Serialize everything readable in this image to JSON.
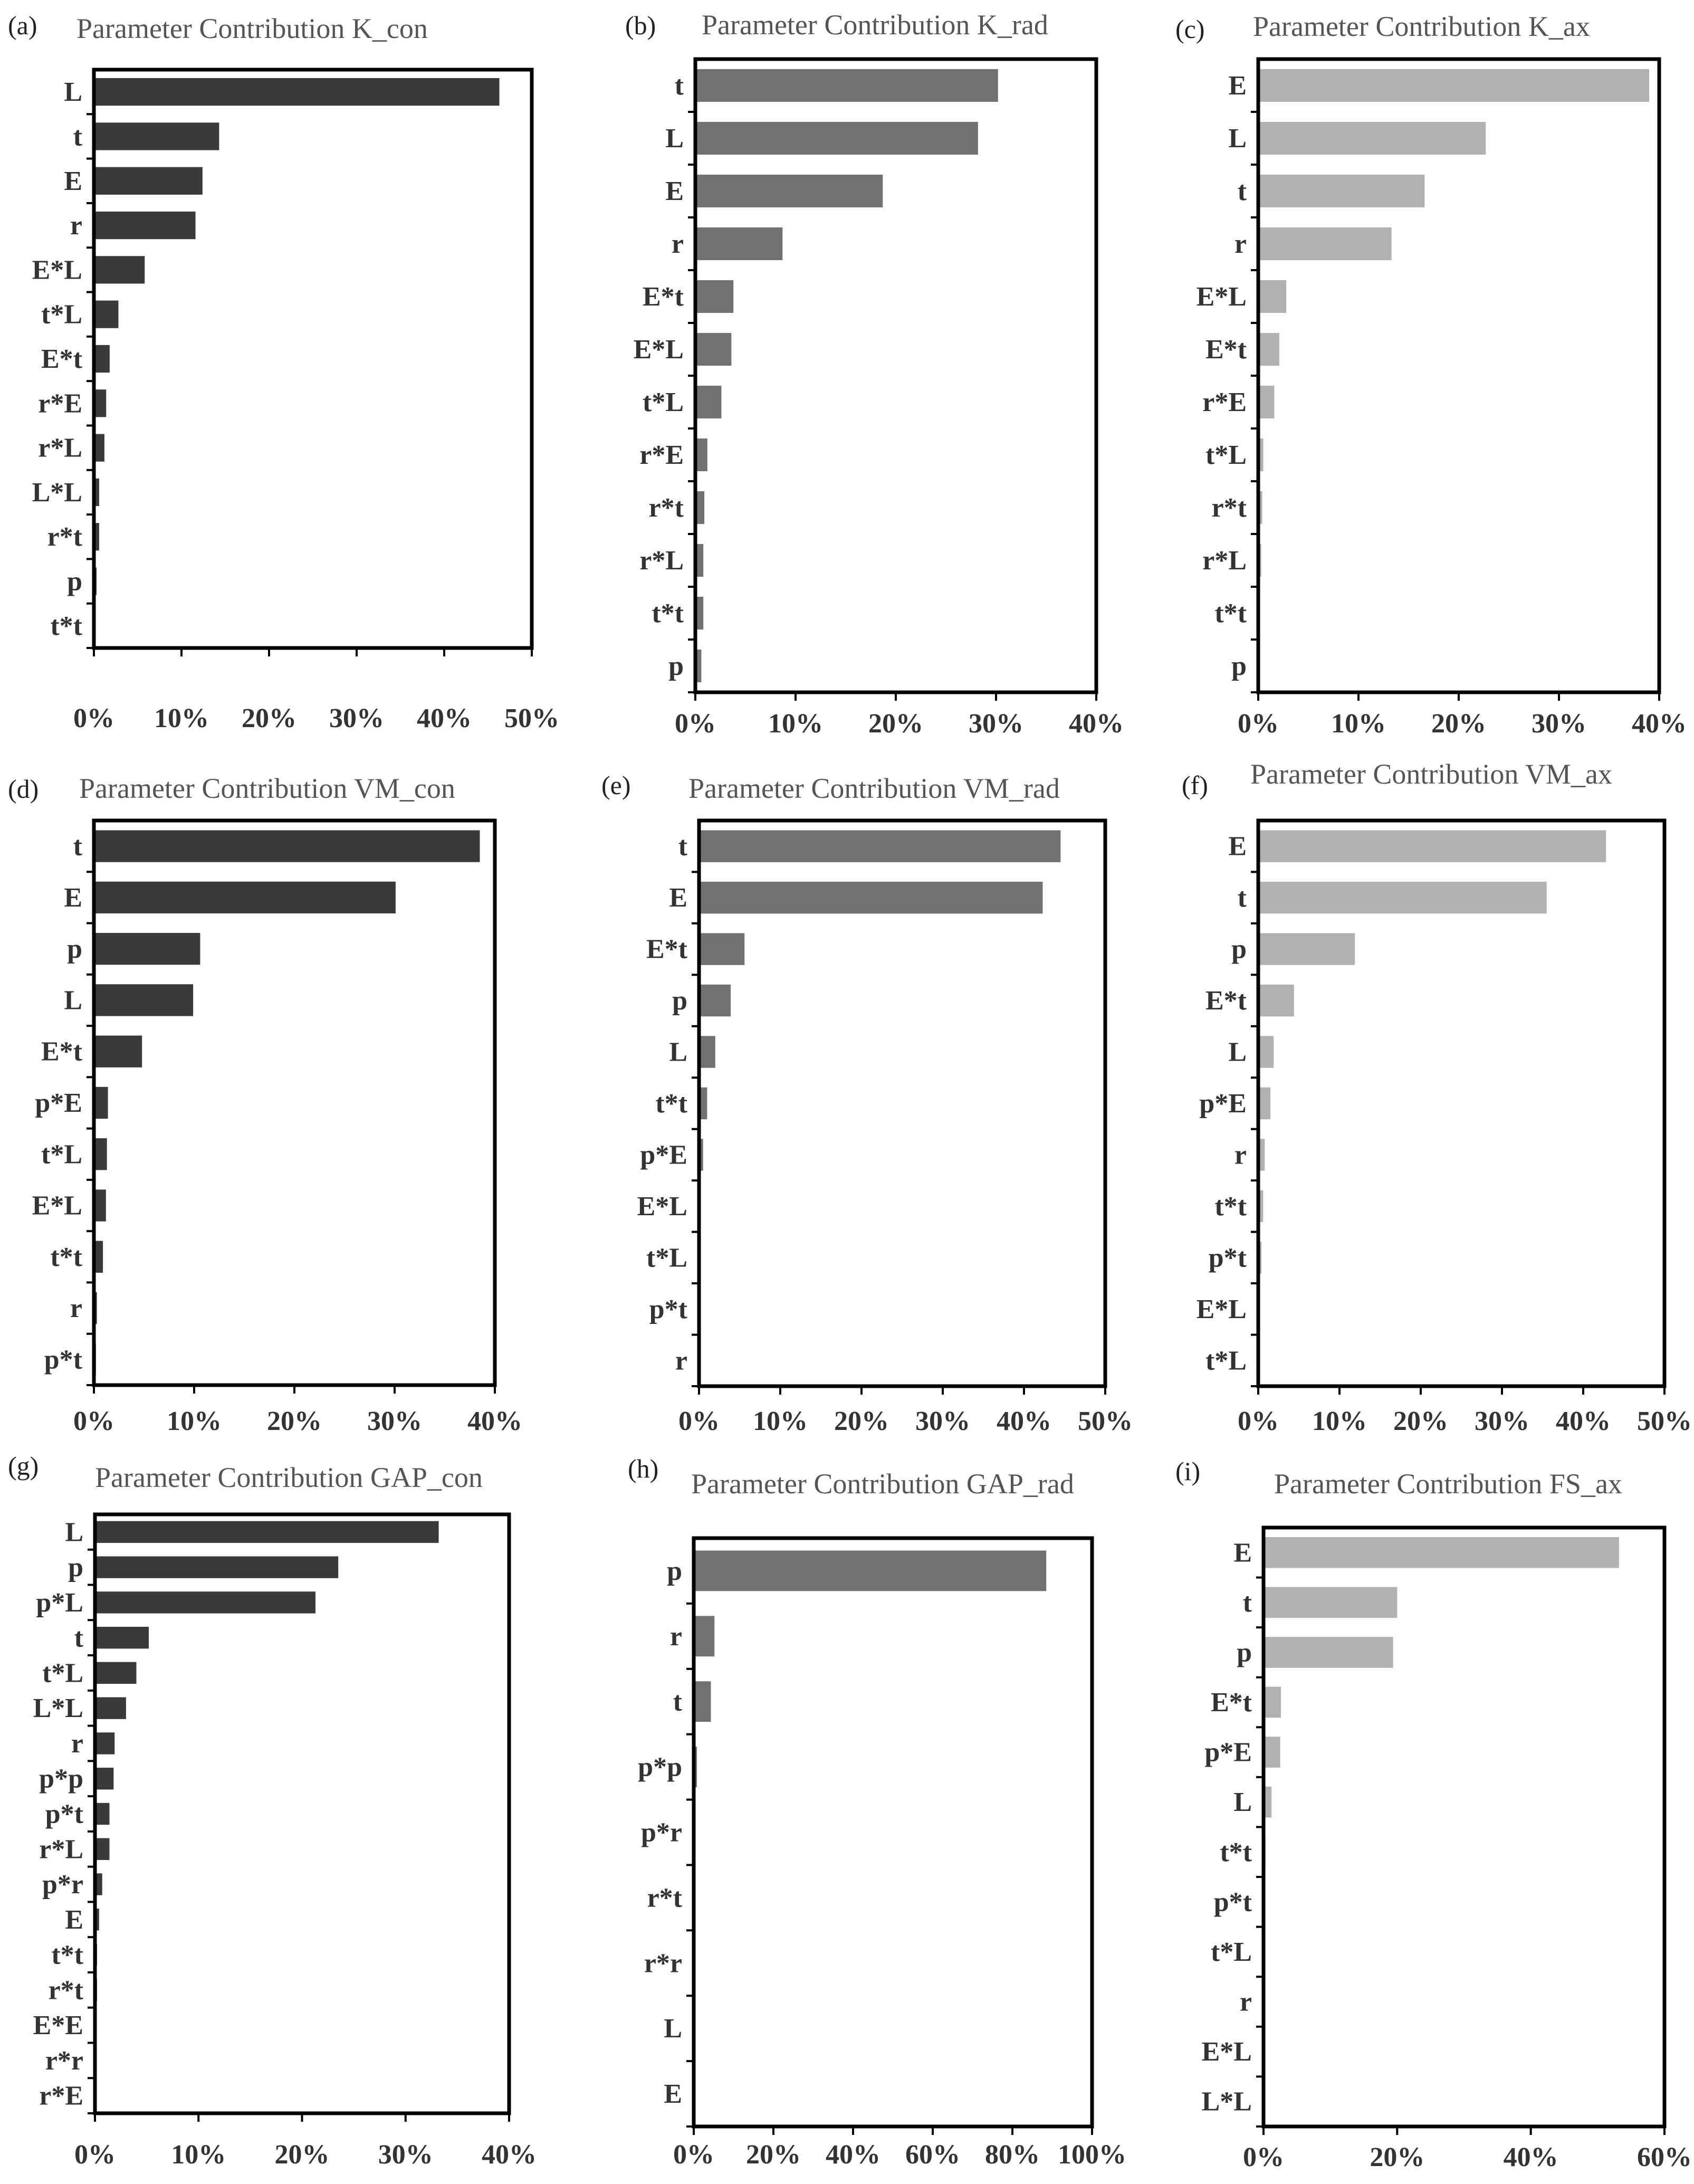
{
  "colors": {
    "con": "#3a3a3a",
    "rad": "#717171",
    "ax": "#b1b1b1"
  },
  "chart_data": [
    {
      "panel": "(a)",
      "title": "Parameter Contribution K_con",
      "type": "bar",
      "orientation": "horizontal",
      "color_key": "con",
      "categories": [
        "L",
        "t",
        "E",
        "r",
        "E*L",
        "t*L",
        "E*t",
        "r*E",
        "r*L",
        "L*L",
        "r*t",
        "p",
        "t*t"
      ],
      "values": [
        46.3,
        14.3,
        12.4,
        11.6,
        5.8,
        2.8,
        1.8,
        1.4,
        1.2,
        0.6,
        0.6,
        0.3,
        0.2
      ],
      "xlim": [
        0,
        50
      ],
      "xticks": [
        "0%",
        "10%",
        "20%",
        "30%",
        "40%",
        "50%"
      ]
    },
    {
      "panel": "(b)",
      "title": "Parameter Contribution K_rad",
      "type": "bar",
      "orientation": "horizontal",
      "color_key": "rad",
      "categories": [
        "t",
        "L",
        "E",
        "r",
        "E*t",
        "E*L",
        "t*L",
        "r*E",
        "r*t",
        "r*L",
        "t*t",
        "p"
      ],
      "values": [
        30.2,
        28.2,
        18.7,
        8.7,
        3.8,
        3.6,
        2.6,
        1.2,
        0.9,
        0.8,
        0.8,
        0.6
      ],
      "xlim": [
        0,
        40
      ],
      "xticks": [
        "0%",
        "10%",
        "20%",
        "30%",
        "40%"
      ]
    },
    {
      "panel": "(c)",
      "title": "Parameter Contribution K_ax",
      "type": "bar",
      "orientation": "horizontal",
      "color_key": "ax",
      "categories": [
        "E",
        "L",
        "t",
        "r",
        "E*L",
        "E*t",
        "r*E",
        "t*L",
        "r*t",
        "r*L",
        "t*t",
        "p"
      ],
      "values": [
        39.0,
        22.7,
        16.6,
        13.3,
        2.8,
        2.1,
        1.6,
        0.5,
        0.4,
        0.3,
        0.1,
        0.1
      ],
      "xlim": [
        0,
        40
      ],
      "xticks": [
        "0%",
        "10%",
        "20%",
        "30%",
        "40%"
      ]
    },
    {
      "panel": "(d)",
      "title": "Parameter Contribution VM_con",
      "type": "bar",
      "orientation": "horizontal",
      "color_key": "con",
      "categories": [
        "t",
        "E",
        "p",
        "L",
        "E*t",
        "p*E",
        "t*L",
        "E*L",
        "t*t",
        "r",
        "p*t"
      ],
      "values": [
        38.5,
        30.1,
        10.6,
        9.9,
        4.8,
        1.4,
        1.3,
        1.2,
        0.9,
        0.3,
        0.2
      ],
      "xlim": [
        0,
        40
      ],
      "xticks": [
        "0%",
        "10%",
        "20%",
        "30%",
        "40%"
      ]
    },
    {
      "panel": "(e)",
      "title": "Parameter Contribution VM_rad",
      "type": "bar",
      "orientation": "horizontal",
      "color_key": "rad",
      "categories": [
        "t",
        "E",
        "E*t",
        "p",
        "L",
        "t*t",
        "p*E",
        "E*L",
        "t*L",
        "p*t",
        "r"
      ],
      "values": [
        44.5,
        42.3,
        5.6,
        3.9,
        2.0,
        1.0,
        0.5,
        0.2,
        0.1,
        0.1,
        0.1
      ],
      "xlim": [
        0,
        50
      ],
      "xticks": [
        "0%",
        "10%",
        "20%",
        "30%",
        "40%",
        "50%"
      ]
    },
    {
      "panel": "(f)",
      "title": "Parameter Contribution VM_ax",
      "type": "bar",
      "orientation": "horizontal",
      "color_key": "ax",
      "categories": [
        "E",
        "t",
        "p",
        "E*t",
        "L",
        "p*E",
        "r",
        "t*t",
        "p*t",
        "E*L",
        "t*L"
      ],
      "values": [
        42.8,
        35.5,
        11.9,
        4.4,
        1.9,
        1.5,
        0.8,
        0.6,
        0.4,
        0.2,
        0.1
      ],
      "xlim": [
        0,
        50
      ],
      "xticks": [
        "0%",
        "10%",
        "20%",
        "30%",
        "40%",
        "50%"
      ]
    },
    {
      "panel": "(g)",
      "title": "Parameter Contribution GAP_con",
      "type": "bar",
      "orientation": "horizontal",
      "color_key": "con",
      "categories": [
        "L",
        "p",
        "p*L",
        "t",
        "t*L",
        "L*L",
        "r",
        "p*p",
        "p*t",
        "r*L",
        "p*r",
        "E",
        "t*t",
        "r*t",
        "E*E",
        "r*r",
        "r*E"
      ],
      "values": [
        33.2,
        23.5,
        21.3,
        5.2,
        4.0,
        3.0,
        1.9,
        1.8,
        1.4,
        1.4,
        0.7,
        0.4,
        0.2,
        0.2,
        0.1,
        0.1,
        0.1
      ],
      "xlim": [
        0,
        40
      ],
      "xticks": [
        "0%",
        "10%",
        "20%",
        "30%",
        "40%"
      ]
    },
    {
      "panel": "(h)",
      "title": "Parameter Contribution GAP_rad",
      "type": "bar",
      "orientation": "horizontal",
      "color_key": "rad",
      "categories": [
        "p",
        "r",
        "t",
        "p*p",
        "p*r",
        "r*t",
        "r*r",
        "L",
        "E"
      ],
      "values": [
        88.5,
        5.2,
        4.3,
        0.8,
        0.2,
        0.1,
        0.1,
        0.1,
        0.1
      ],
      "xlim": [
        0,
        100
      ],
      "xticks": [
        "0%",
        "20%",
        "40%",
        "60%",
        "80%",
        "100%"
      ]
    },
    {
      "panel": "(i)",
      "title": "Parameter Contribution FS_ax",
      "type": "bar",
      "orientation": "horizontal",
      "color_key": "ax",
      "categories": [
        "E",
        "t",
        "p",
        "E*t",
        "p*E",
        "L",
        "t*t",
        "p*t",
        "t*L",
        "r",
        "E*L",
        "L*L"
      ],
      "values": [
        53.2,
        20.0,
        19.4,
        2.6,
        2.5,
        1.2,
        0.3,
        0.2,
        0.1,
        0.1,
        0.1,
        0.1
      ],
      "xlim": [
        0,
        60
      ],
      "xticks": [
        "0%",
        "20%",
        "40%",
        "60%"
      ]
    }
  ]
}
